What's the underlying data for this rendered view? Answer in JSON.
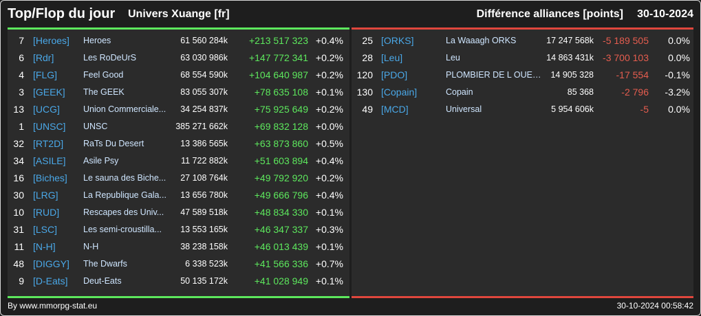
{
  "header": {
    "title": "Top/Flop du jour",
    "subtitle": "Univers Xuange [fr]",
    "diff_label": "Différence alliances [points]",
    "date": "30-10-2024"
  },
  "colors": {
    "up": "#5de85d",
    "down": "#e55d4f",
    "tag": "#4aa8e8"
  },
  "top": [
    {
      "rank": "7",
      "tag": "[Heroes]",
      "name": "Heroes",
      "points": "61 560 284k",
      "delta": "+213 517 323",
      "pct": "+0.4%"
    },
    {
      "rank": "6",
      "tag": "[Rdr]",
      "name": "Les RoDeUrS",
      "points": "63 030 986k",
      "delta": "+147 772 341",
      "pct": "+0.2%"
    },
    {
      "rank": "4",
      "tag": "[FLG]",
      "name": "Feel Good",
      "points": "68 554 590k",
      "delta": "+104 640 987",
      "pct": "+0.2%"
    },
    {
      "rank": "3",
      "tag": "[GEEK]",
      "name": "The GEEK",
      "points": "83 055 307k",
      "delta": "+78 635 108",
      "pct": "+0.1%"
    },
    {
      "rank": "13",
      "tag": "[UCG]",
      "name": "Union Commerciale...",
      "points": "34 254 837k",
      "delta": "+75 925 649",
      "pct": "+0.2%"
    },
    {
      "rank": "1",
      "tag": "[UNSC]",
      "name": "UNSC",
      "points": "385 271 662k",
      "delta": "+69 832 128",
      "pct": "+0.0%"
    },
    {
      "rank": "32",
      "tag": "[RT2D]",
      "name": "RaTs Du Desert",
      "points": "13 386 565k",
      "delta": "+63 873 860",
      "pct": "+0.5%"
    },
    {
      "rank": "34",
      "tag": "[ASILE]",
      "name": "Asile Psy",
      "points": "11 722 882k",
      "delta": "+51 603 894",
      "pct": "+0.4%"
    },
    {
      "rank": "16",
      "tag": "[Biches]",
      "name": "Le sauna des Biche...",
      "points": "27 108 764k",
      "delta": "+49 792 920",
      "pct": "+0.2%"
    },
    {
      "rank": "30",
      "tag": "[LRG]",
      "name": "La Republique Gala...",
      "points": "13 656 780k",
      "delta": "+49 666 796",
      "pct": "+0.4%"
    },
    {
      "rank": "10",
      "tag": "[RUD]",
      "name": "Rescapes des Univ...",
      "points": "47 589 518k",
      "delta": "+48 834 330",
      "pct": "+0.1%"
    },
    {
      "rank": "31",
      "tag": "[LSC]",
      "name": "Les semi-croustilla...",
      "points": "13 553 165k",
      "delta": "+46 347 337",
      "pct": "+0.3%"
    },
    {
      "rank": "11",
      "tag": "[N-H]",
      "name": "N-H",
      "points": "38 238 158k",
      "delta": "+46 013 439",
      "pct": "+0.1%"
    },
    {
      "rank": "48",
      "tag": "[DIGGY]",
      "name": "The Dwarfs",
      "points": "6 338 523k",
      "delta": "+41 566 336",
      "pct": "+0.7%"
    },
    {
      "rank": "9",
      "tag": "[D-Eats]",
      "name": "Deut-Eats",
      "points": "50 135 172k",
      "delta": "+41 028 949",
      "pct": "+0.1%"
    }
  ],
  "flop": [
    {
      "rank": "25",
      "tag": "[ORKS]",
      "name": "La Waaagh ORKS",
      "points": "17 247 568k",
      "delta": "-5 189 505",
      "pct": "0.0%"
    },
    {
      "rank": "28",
      "tag": "[Leu]",
      "name": "Leu",
      "points": "14 863 431k",
      "delta": "-3 700 103",
      "pct": "0.0%"
    },
    {
      "rank": "120",
      "tag": "[PDO]",
      "name": "PLOMBIER DE L OUEST",
      "points": "14 905 328",
      "delta": "-17 554",
      "pct": "-0.1%"
    },
    {
      "rank": "130",
      "tag": "[Copain]",
      "name": "Copain",
      "points": "85 368",
      "delta": "-2 796",
      "pct": "-3.2%"
    },
    {
      "rank": "49",
      "tag": "[MCD]",
      "name": "Universal",
      "points": "5 954 606k",
      "delta": "-5",
      "pct": "0.0%"
    }
  ],
  "footer": {
    "source": "By www.mmorpg-stat.eu",
    "timestamp": "30-10-2024 00:58:42"
  }
}
